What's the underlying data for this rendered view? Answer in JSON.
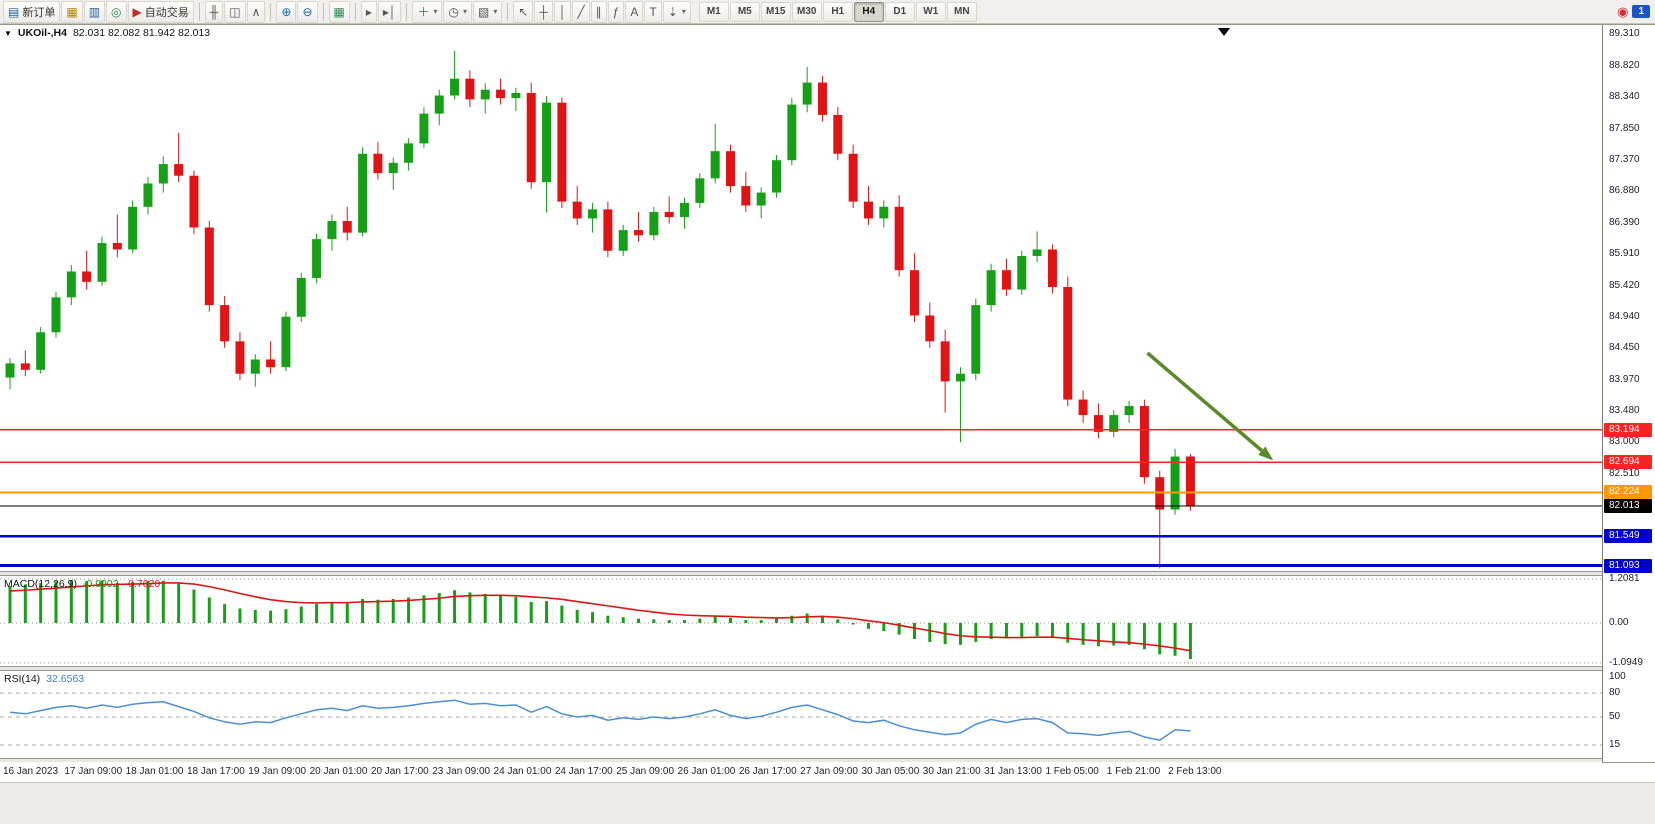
{
  "toolbar": {
    "groups": [
      {
        "name": "trade",
        "items": [
          {
            "name": "new-order",
            "glyph": "▤",
            "glyph_color": "#1a66b0",
            "label": "新订单"
          },
          {
            "name": "chart-window",
            "glyph": "▦",
            "glyph_color": "#b8860b"
          },
          {
            "name": "market-watch",
            "glyph": "▥",
            "glyph_color": "#23619e"
          },
          {
            "name": "navigator",
            "glyph": "◎",
            "glyph_color": "#2e8b57"
          },
          {
            "name": "autotrading",
            "glyph": "▶",
            "glyph_color": "#c62828",
            "label": "自动交易"
          }
        ]
      },
      {
        "name": "chart-type",
        "items": [
          {
            "name": "bar-chart",
            "glyph": "╫"
          },
          {
            "name": "candlestick-chart",
            "glyph": "◫"
          },
          {
            "name": "line-chart",
            "glyph": "∧"
          }
        ]
      },
      {
        "name": "zoom",
        "items": [
          {
            "name": "zoom-in",
            "glyph": "⊕",
            "glyph_color": "#1a66b0"
          },
          {
            "name": "zoom-out",
            "glyph": "⊖",
            "glyph_color": "#1a66b0"
          }
        ]
      },
      {
        "name": "windows",
        "items": [
          {
            "name": "tile-windows",
            "glyph": "▦",
            "glyph_color": "#2e8b57"
          }
        ]
      },
      {
        "name": "scroll",
        "items": [
          {
            "name": "auto-scroll",
            "glyph": "▸"
          },
          {
            "name": "chart-shift",
            "glyph": "▸│"
          }
        ]
      },
      {
        "name": "objects",
        "items": [
          {
            "name": "indicators",
            "glyph": "＋",
            "glyph_color": "#2e8b57",
            "dropdown": true
          },
          {
            "name": "periods",
            "glyph": "◷",
            "dropdown": true
          },
          {
            "name": "templates",
            "glyph": "▧",
            "dropdown": true
          }
        ]
      },
      {
        "name": "tools",
        "items": [
          {
            "name": "cursor",
            "glyph": "↖"
          },
          {
            "name": "crosshair",
            "glyph": "┼"
          },
          {
            "name": "vertical-line",
            "glyph": "│"
          },
          {
            "name": "trendline",
            "glyph": "╱"
          },
          {
            "name": "equidistant-channel",
            "glyph": "∥"
          },
          {
            "name": "fibonacci",
            "glyph": "ƒ"
          },
          {
            "name": "text",
            "glyph": "A"
          },
          {
            "name": "text-label",
            "glyph": "T"
          },
          {
            "name": "arrows",
            "glyph": "⇣",
            "dropdown": true
          }
        ]
      }
    ],
    "timeframes": [
      {
        "label": "M1"
      },
      {
        "label": "M5"
      },
      {
        "label": "M15"
      },
      {
        "label": "M30"
      },
      {
        "label": "H1"
      },
      {
        "label": "H4",
        "active": true
      },
      {
        "label": "D1"
      },
      {
        "label": "W1"
      },
      {
        "label": "MN"
      }
    ],
    "right": {
      "alert_glyph": "◉",
      "alert_color": "#d32f2f",
      "badge": "1"
    }
  },
  "chart": {
    "symbol_header": "UKOil-,H4",
    "ohlc": "82.031 82.082 81.942 82.013",
    "collapse_triangle": "▼",
    "macd_name": "MACD(12,26,9)",
    "macd_value": "-0.9902",
    "macd_signal": "-0.7620",
    "rsi_name": "RSI(14)",
    "rsi_value": "32.6563",
    "up_color": "#17a017",
    "down_color": "#e01414",
    "price_axis_labels": [
      "89.310",
      "88.820",
      "88.340",
      "87.850",
      "87.370",
      "86.880",
      "86.390",
      "85.910",
      "85.420",
      "84.940",
      "84.450",
      "83.970",
      "83.480",
      "83.000",
      "82.510"
    ],
    "price_tags": [
      {
        "text": "83.194",
        "price": 83.194,
        "bg": "#ff2222"
      },
      {
        "text": "82.694",
        "price": 82.694,
        "bg": "#ff2222"
      },
      {
        "text": "82.224",
        "price": 82.224,
        "bg": "#ff9800"
      },
      {
        "text": "82.013",
        "price": 82.013,
        "bg": "#000000"
      },
      {
        "text": "81.549",
        "price": 81.549,
        "bg": "#0000cc"
      },
      {
        "text": "81.093",
        "price": 81.093,
        "bg": "#0000cc"
      }
    ],
    "hlines": [
      {
        "price": 83.194,
        "color": "#ff2222",
        "width": 1.4
      },
      {
        "price": 82.694,
        "color": "#ff2222",
        "width": 1.4
      },
      {
        "price": 82.224,
        "color": "#ff9800",
        "width": 2.4
      },
      {
        "price": 82.013,
        "color": "#000000",
        "width": 1.2
      },
      {
        "price": 81.549,
        "color": "#0000cc",
        "width": 2.4
      },
      {
        "price": 81.093,
        "color": "#0000cc",
        "width": 3
      }
    ],
    "arrow": {
      "color": "#5c8a2a",
      "from": {
        "candle": 74.2,
        "price": 84.38
      },
      "to": {
        "candle": 82.4,
        "price": 82.72
      }
    },
    "macd_axis_labels": [
      {
        "text": "1.2081",
        "value": 1.2081
      },
      {
        "text": "0.00",
        "value": 0
      },
      {
        "text": "-1.0949",
        "value": -1.0949
      }
    ],
    "rsi_axis_labels": [
      {
        "text": "100",
        "value": 100
      },
      {
        "text": "80",
        "value": 80
      },
      {
        "text": "50",
        "value": 50
      },
      {
        "text": "15",
        "value": 15
      }
    ],
    "rsi_levels": [
      80,
      50,
      15
    ]
  },
  "chart_data": [
    {
      "type": "candlestick",
      "title": "UKOil-,H4",
      "timeframe": "H4",
      "last_price": 82.013,
      "ylim": [
        81.01,
        89.45
      ],
      "x_labels": [
        "16 Jan 2023",
        "17 Jan 09:00",
        "18 Jan 01:00",
        "18 Jan 17:00",
        "19 Jan 09:00",
        "20 Jan 01:00",
        "20 Jan 17:00",
        "23 Jan 09:00",
        "24 Jan 01:00",
        "24 Jan 17:00",
        "25 Jan 09:00",
        "26 Jan 01:00",
        "26 Jan 17:00",
        "27 Jan 09:00",
        "30 Jan 05:00",
        "30 Jan 21:00",
        "31 Jan 13:00",
        "1 Feb 05:00",
        "1 Feb 21:00",
        "2 Feb 13:00"
      ],
      "candles_per_label": 4,
      "horizontal_levels": [
        83.194,
        82.694,
        82.224,
        82.013,
        81.549,
        81.093
      ],
      "ohlc": [
        [
          84.0,
          84.3,
          83.82,
          84.22
        ],
        [
          84.22,
          84.42,
          84.02,
          84.12
        ],
        [
          84.12,
          84.78,
          84.06,
          84.7
        ],
        [
          84.7,
          85.32,
          84.62,
          85.24
        ],
        [
          85.24,
          85.74,
          85.12,
          85.64
        ],
        [
          85.64,
          85.96,
          85.36,
          85.48
        ],
        [
          85.48,
          86.18,
          85.42,
          86.08
        ],
        [
          86.08,
          86.52,
          85.86,
          85.98
        ],
        [
          85.98,
          86.74,
          85.92,
          86.64
        ],
        [
          86.64,
          87.1,
          86.52,
          87.0
        ],
        [
          87.0,
          87.42,
          86.86,
          87.3
        ],
        [
          87.3,
          87.78,
          87.02,
          87.12
        ],
        [
          87.12,
          87.2,
          86.22,
          86.32
        ],
        [
          86.32,
          86.42,
          85.02,
          85.12
        ],
        [
          85.12,
          85.26,
          84.46,
          84.56
        ],
        [
          84.56,
          84.7,
          83.96,
          84.06
        ],
        [
          84.06,
          84.36,
          83.86,
          84.28
        ],
        [
          84.28,
          84.56,
          84.06,
          84.16
        ],
        [
          84.16,
          85.02,
          84.1,
          84.94
        ],
        [
          84.94,
          85.62,
          84.86,
          85.54
        ],
        [
          85.54,
          86.22,
          85.46,
          86.14
        ],
        [
          86.14,
          86.52,
          85.96,
          86.42
        ],
        [
          86.42,
          86.64,
          86.12,
          86.24
        ],
        [
          86.24,
          87.56,
          86.18,
          87.46
        ],
        [
          87.46,
          87.64,
          87.06,
          87.16
        ],
        [
          87.16,
          87.4,
          86.9,
          87.32
        ],
        [
          87.32,
          87.7,
          87.2,
          87.62
        ],
        [
          87.62,
          88.18,
          87.55,
          88.08
        ],
        [
          88.08,
          88.45,
          87.9,
          88.36
        ],
        [
          88.36,
          89.05,
          88.3,
          88.62
        ],
        [
          88.62,
          88.75,
          88.18,
          88.3
        ],
        [
          88.3,
          88.55,
          88.08,
          88.45
        ],
        [
          88.45,
          88.62,
          88.22,
          88.32
        ],
        [
          88.32,
          88.48,
          88.12,
          88.4
        ],
        [
          88.4,
          88.56,
          86.92,
          87.02
        ],
        [
          87.02,
          88.35,
          86.55,
          88.25
        ],
        [
          88.25,
          88.33,
          86.62,
          86.72
        ],
        [
          86.72,
          86.96,
          86.36,
          86.46
        ],
        [
          86.46,
          86.7,
          86.24,
          86.6
        ],
        [
          86.6,
          86.72,
          85.86,
          85.96
        ],
        [
          85.96,
          86.36,
          85.88,
          86.28
        ],
        [
          86.28,
          86.56,
          86.1,
          86.2
        ],
        [
          86.2,
          86.64,
          86.12,
          86.56
        ],
        [
          86.56,
          86.8,
          86.38,
          86.48
        ],
        [
          86.48,
          86.78,
          86.3,
          86.7
        ],
        [
          86.7,
          87.16,
          86.62,
          87.08
        ],
        [
          87.08,
          87.92,
          87.0,
          87.5
        ],
        [
          87.5,
          87.6,
          86.86,
          86.96
        ],
        [
          86.96,
          87.18,
          86.56,
          86.66
        ],
        [
          86.66,
          86.94,
          86.46,
          86.86
        ],
        [
          86.86,
          87.44,
          86.78,
          87.36
        ],
        [
          87.36,
          88.32,
          87.28,
          88.22
        ],
        [
          88.22,
          88.8,
          88.1,
          88.56
        ],
        [
          88.56,
          88.66,
          87.96,
          88.06
        ],
        [
          88.06,
          88.18,
          87.36,
          87.46
        ],
        [
          87.46,
          87.6,
          86.62,
          86.72
        ],
        [
          86.72,
          86.96,
          86.36,
          86.46
        ],
        [
          86.46,
          86.74,
          86.32,
          86.64
        ],
        [
          86.64,
          86.82,
          85.56,
          85.66
        ],
        [
          85.66,
          85.92,
          84.86,
          84.96
        ],
        [
          84.96,
          85.16,
          84.46,
          84.56
        ],
        [
          84.56,
          84.74,
          83.46,
          83.94
        ],
        [
          83.94,
          84.16,
          83.0,
          84.06
        ],
        [
          84.06,
          85.22,
          83.96,
          85.12
        ],
        [
          85.12,
          85.76,
          85.02,
          85.66
        ],
        [
          85.66,
          85.84,
          85.26,
          85.36
        ],
        [
          85.36,
          85.96,
          85.28,
          85.88
        ],
        [
          85.88,
          86.26,
          85.78,
          85.98
        ],
        [
          85.98,
          86.06,
          85.3,
          85.4
        ],
        [
          85.4,
          85.56,
          83.56,
          83.66
        ],
        [
          83.66,
          83.8,
          83.3,
          83.42
        ],
        [
          83.42,
          83.6,
          83.06,
          83.16
        ],
        [
          83.16,
          83.5,
          83.08,
          83.42
        ],
        [
          83.42,
          83.64,
          83.3,
          83.56
        ],
        [
          83.56,
          83.66,
          82.36,
          82.46
        ],
        [
          82.46,
          82.56,
          81.05,
          81.96
        ],
        [
          81.96,
          82.9,
          81.88,
          82.78
        ],
        [
          82.78,
          82.82,
          81.94,
          82.01
        ]
      ]
    },
    {
      "type": "bar",
      "title": "MACD(12,26,9)",
      "current_macd": -0.9902,
      "current_signal": -0.762,
      "ylim": [
        -1.0949,
        1.2081
      ],
      "histogram": [
        1.02,
        1.06,
        1.1,
        1.14,
        1.18,
        1.15,
        1.17,
        1.1,
        1.12,
        1.15,
        1.16,
        1.08,
        0.92,
        0.7,
        0.52,
        0.4,
        0.36,
        0.34,
        0.38,
        0.45,
        0.52,
        0.58,
        0.56,
        0.66,
        0.64,
        0.66,
        0.7,
        0.76,
        0.82,
        0.9,
        0.84,
        0.8,
        0.76,
        0.72,
        0.58,
        0.6,
        0.48,
        0.36,
        0.3,
        0.2,
        0.16,
        0.12,
        0.1,
        0.08,
        0.08,
        0.12,
        0.18,
        0.14,
        0.08,
        0.08,
        0.12,
        0.2,
        0.26,
        0.2,
        0.1,
        -0.04,
        -0.16,
        -0.22,
        -0.32,
        -0.44,
        -0.52,
        -0.58,
        -0.6,
        -0.52,
        -0.44,
        -0.42,
        -0.38,
        -0.36,
        -0.4,
        -0.54,
        -0.6,
        -0.64,
        -0.62,
        -0.6,
        -0.72,
        -0.86,
        -0.9,
        -0.99
      ],
      "signal": [
        0.88,
        0.9,
        0.93,
        0.96,
        0.99,
        1.02,
        1.05,
        1.06,
        1.07,
        1.08,
        1.1,
        1.1,
        1.07,
        1.0,
        0.91,
        0.81,
        0.72,
        0.64,
        0.59,
        0.56,
        0.55,
        0.56,
        0.56,
        0.58,
        0.59,
        0.6,
        0.62,
        0.65,
        0.68,
        0.73,
        0.75,
        0.76,
        0.76,
        0.75,
        0.72,
        0.69,
        0.65,
        0.59,
        0.53,
        0.47,
        0.41,
        0.35,
        0.3,
        0.25,
        0.22,
        0.2,
        0.19,
        0.18,
        0.16,
        0.15,
        0.14,
        0.15,
        0.17,
        0.18,
        0.16,
        0.12,
        0.06,
        0.01,
        -0.06,
        -0.14,
        -0.21,
        -0.29,
        -0.35,
        -0.38,
        -0.39,
        -0.4,
        -0.4,
        -0.39,
        -0.39,
        -0.42,
        -0.46,
        -0.49,
        -0.52,
        -0.54,
        -0.58,
        -0.63,
        -0.69,
        -0.76
      ]
    },
    {
      "type": "line",
      "title": "RSI(14)",
      "current": 32.6563,
      "ylim": [
        0,
        100
      ],
      "levels": [
        80,
        50,
        15
      ],
      "values": [
        56,
        54,
        58,
        62,
        64,
        61,
        65,
        62,
        66,
        68,
        69,
        63,
        57,
        49,
        44,
        41,
        44,
        43,
        49,
        54,
        59,
        61,
        58,
        64,
        61,
        62,
        64,
        67,
        69,
        71,
        66,
        67,
        64,
        65,
        56,
        63,
        54,
        50,
        52,
        46,
        49,
        47,
        50,
        48,
        50,
        54,
        59,
        52,
        48,
        51,
        56,
        62,
        65,
        59,
        53,
        45,
        43,
        46,
        39,
        34,
        31,
        28,
        30,
        41,
        47,
        43,
        47,
        48,
        43,
        30,
        29,
        27,
        30,
        32,
        25,
        21,
        34,
        32.66
      ]
    }
  ]
}
